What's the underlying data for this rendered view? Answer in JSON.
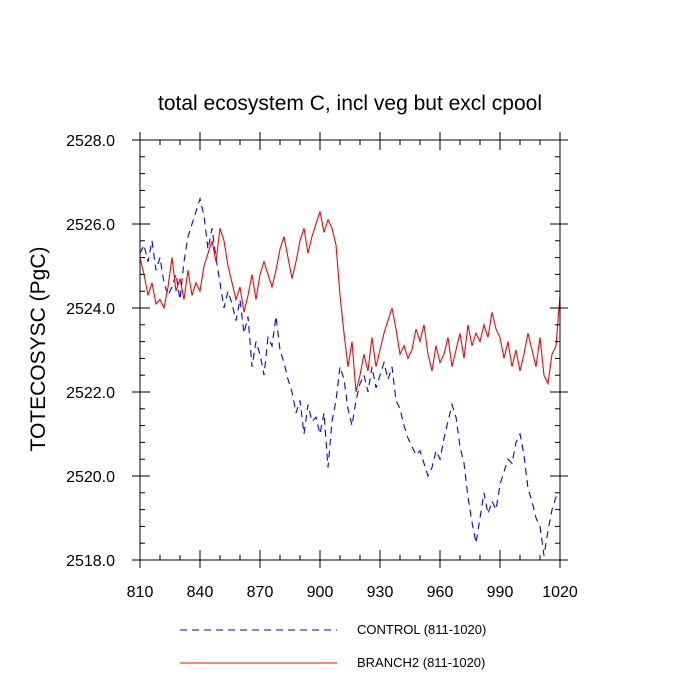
{
  "chart_data": {
    "type": "line",
    "title": "total ecosystem C, incl veg but excl cpool",
    "xlabel": "",
    "ylabel": "TOTECOSYSC  (PgC)",
    "xlim": [
      810,
      1020
    ],
    "ylim": [
      2518.0,
      2528.0
    ],
    "xticks": [
      810,
      840,
      870,
      900,
      930,
      960,
      990,
      1020
    ],
    "yticks": [
      "2518.0",
      "2520.0",
      "2522.0",
      "2524.0",
      "2526.0",
      "2528.0"
    ],
    "grid": false,
    "legend_position": "bottom",
    "series": [
      {
        "name": "CONTROL (811-1020)",
        "color": "#0000ff",
        "style": "dashed",
        "x": [
          810,
          812,
          814,
          816,
          818,
          820,
          822,
          824,
          826,
          828,
          830,
          832,
          834,
          836,
          838,
          840,
          842,
          844,
          846,
          848,
          850,
          852,
          854,
          856,
          858,
          860,
          862,
          864,
          866,
          868,
          870,
          872,
          874,
          876,
          878,
          880,
          882,
          884,
          886,
          888,
          890,
          892,
          894,
          896,
          898,
          900,
          902,
          904,
          906,
          908,
          910,
          912,
          914,
          916,
          918,
          920,
          922,
          924,
          926,
          928,
          930,
          932,
          934,
          936,
          938,
          940,
          942,
          944,
          946,
          948,
          950,
          952,
          954,
          956,
          958,
          960,
          962,
          964,
          966,
          968,
          970,
          972,
          974,
          976,
          978,
          980,
          982,
          984,
          986,
          988,
          990,
          992,
          994,
          996,
          998,
          1000,
          1002,
          1004,
          1006,
          1008,
          1010,
          1012,
          1014,
          1016,
          1018,
          1020
        ],
        "values": [
          2525.3,
          2525.5,
          2525.1,
          2525.6,
          2524.9,
          2525.2,
          2524.6,
          2524.3,
          2524.5,
          2524.8,
          2524.2,
          2525.1,
          2525.7,
          2526.0,
          2526.3,
          2526.6,
          2526.2,
          2525.4,
          2525.9,
          2525.2,
          2524.6,
          2524.0,
          2524.4,
          2524.1,
          2523.7,
          2524.2,
          2523.4,
          2523.8,
          2522.6,
          2523.2,
          2522.9,
          2522.4,
          2523.3,
          2523.1,
          2523.8,
          2523.0,
          2522.7,
          2522.3,
          2522.0,
          2521.5,
          2521.8,
          2521.0,
          2521.7,
          2521.3,
          2521.4,
          2521.0,
          2521.5,
          2520.2,
          2521.3,
          2521.8,
          2522.6,
          2522.3,
          2521.6,
          2521.2,
          2521.8,
          2522.2,
          2522.4,
          2522.0,
          2522.6,
          2522.1,
          2522.4,
          2522.7,
          2522.3,
          2522.6,
          2521.8,
          2521.6,
          2521.2,
          2520.9,
          2520.7,
          2520.5,
          2520.6,
          2520.3,
          2520.0,
          2520.2,
          2520.6,
          2520.4,
          2520.9,
          2521.3,
          2521.7,
          2521.4,
          2520.7,
          2520.3,
          2519.5,
          2518.9,
          2518.4,
          2519.0,
          2519.6,
          2519.1,
          2519.4,
          2519.2,
          2519.8,
          2520.1,
          2520.4,
          2520.3,
          2520.8,
          2521.0,
          2520.5,
          2519.7,
          2519.4,
          2519.0,
          2518.8,
          2518.1,
          2518.7,
          2519.2,
          2519.5,
          2519.6
        ]
      },
      {
        "name": "BRANCH2 (811-1020)",
        "color": "#ff0000",
        "style": "solid",
        "x": [
          810,
          812,
          814,
          816,
          818,
          820,
          822,
          824,
          826,
          828,
          830,
          832,
          834,
          836,
          838,
          840,
          842,
          844,
          846,
          848,
          850,
          852,
          854,
          856,
          858,
          860,
          862,
          864,
          866,
          868,
          870,
          872,
          874,
          876,
          878,
          880,
          882,
          884,
          886,
          888,
          890,
          892,
          894,
          896,
          898,
          900,
          902,
          904,
          906,
          908,
          910,
          912,
          914,
          916,
          918,
          920,
          922,
          924,
          926,
          928,
          930,
          932,
          934,
          936,
          938,
          940,
          942,
          944,
          946,
          948,
          950,
          952,
          954,
          956,
          958,
          960,
          962,
          964,
          966,
          968,
          970,
          972,
          974,
          976,
          978,
          980,
          982,
          984,
          986,
          988,
          990,
          992,
          994,
          996,
          998,
          1000,
          1002,
          1004,
          1006,
          1008,
          1010,
          1012,
          1014,
          1016,
          1018,
          1020
        ],
        "values": [
          2525.2,
          2524.8,
          2524.3,
          2524.6,
          2524.1,
          2524.2,
          2524.0,
          2524.5,
          2525.2,
          2524.4,
          2524.7,
          2524.2,
          2524.9,
          2524.3,
          2524.6,
          2524.4,
          2525.0,
          2525.3,
          2525.6,
          2525.1,
          2525.9,
          2525.6,
          2525.0,
          2524.6,
          2524.2,
          2524.5,
          2523.9,
          2524.3,
          2524.8,
          2524.2,
          2524.8,
          2525.1,
          2524.8,
          2524.5,
          2524.9,
          2525.4,
          2525.7,
          2525.2,
          2524.7,
          2525.1,
          2525.6,
          2525.9,
          2525.3,
          2525.7,
          2526.0,
          2526.3,
          2525.8,
          2526.1,
          2525.9,
          2525.5,
          2524.3,
          2523.4,
          2522.6,
          2523.2,
          2522.0,
          2522.4,
          2522.9,
          2522.5,
          2523.3,
          2522.6,
          2523.0,
          2523.4,
          2523.7,
          2524.0,
          2523.5,
          2522.9,
          2523.1,
          2522.8,
          2523.0,
          2523.5,
          2523.2,
          2523.6,
          2522.9,
          2522.5,
          2523.1,
          2522.7,
          2522.9,
          2523.3,
          2522.6,
          2523.0,
          2523.4,
          2522.8,
          2523.6,
          2523.1,
          2523.4,
          2523.2,
          2523.6,
          2523.3,
          2523.9,
          2523.5,
          2523.3,
          2522.8,
          2523.2,
          2522.6,
          2523.0,
          2522.5,
          2522.9,
          2523.4,
          2523.0,
          2522.6,
          2523.3,
          2522.4,
          2522.2,
          2522.9,
          2523.1,
          2524.3
        ]
      }
    ]
  }
}
